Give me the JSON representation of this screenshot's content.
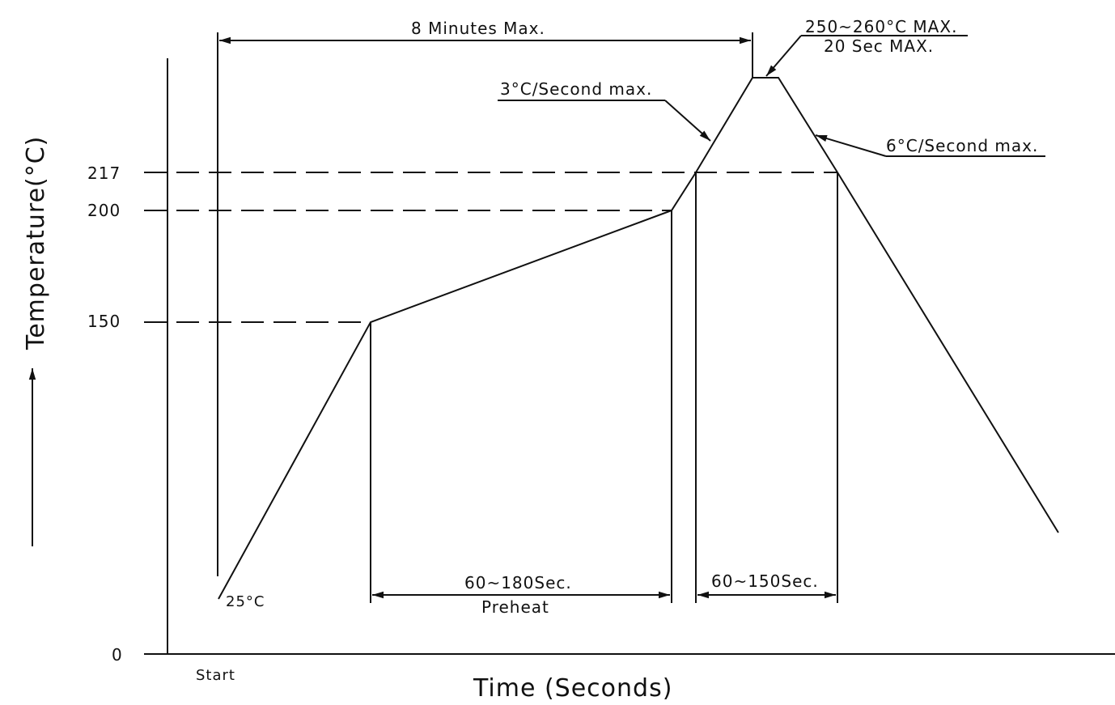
{
  "axes": {
    "y_title": "Temperature(°C)",
    "x_title": "Time (Seconds)",
    "x_start": "Start",
    "y_ticks": [
      "217",
      "200",
      "150",
      "0"
    ]
  },
  "annotations": {
    "total_time": "8 Minutes Max.",
    "peak_temp": "250~260°C MAX.",
    "peak_time": "20 Sec MAX.",
    "ramp_up": "3°C/Second max.",
    "ramp_down": "6°C/Second max.",
    "start_temp": "25°C",
    "preheat_time": "60~180Sec.",
    "preheat_label": "Preheat",
    "reflow_time": "60~150Sec."
  }
}
